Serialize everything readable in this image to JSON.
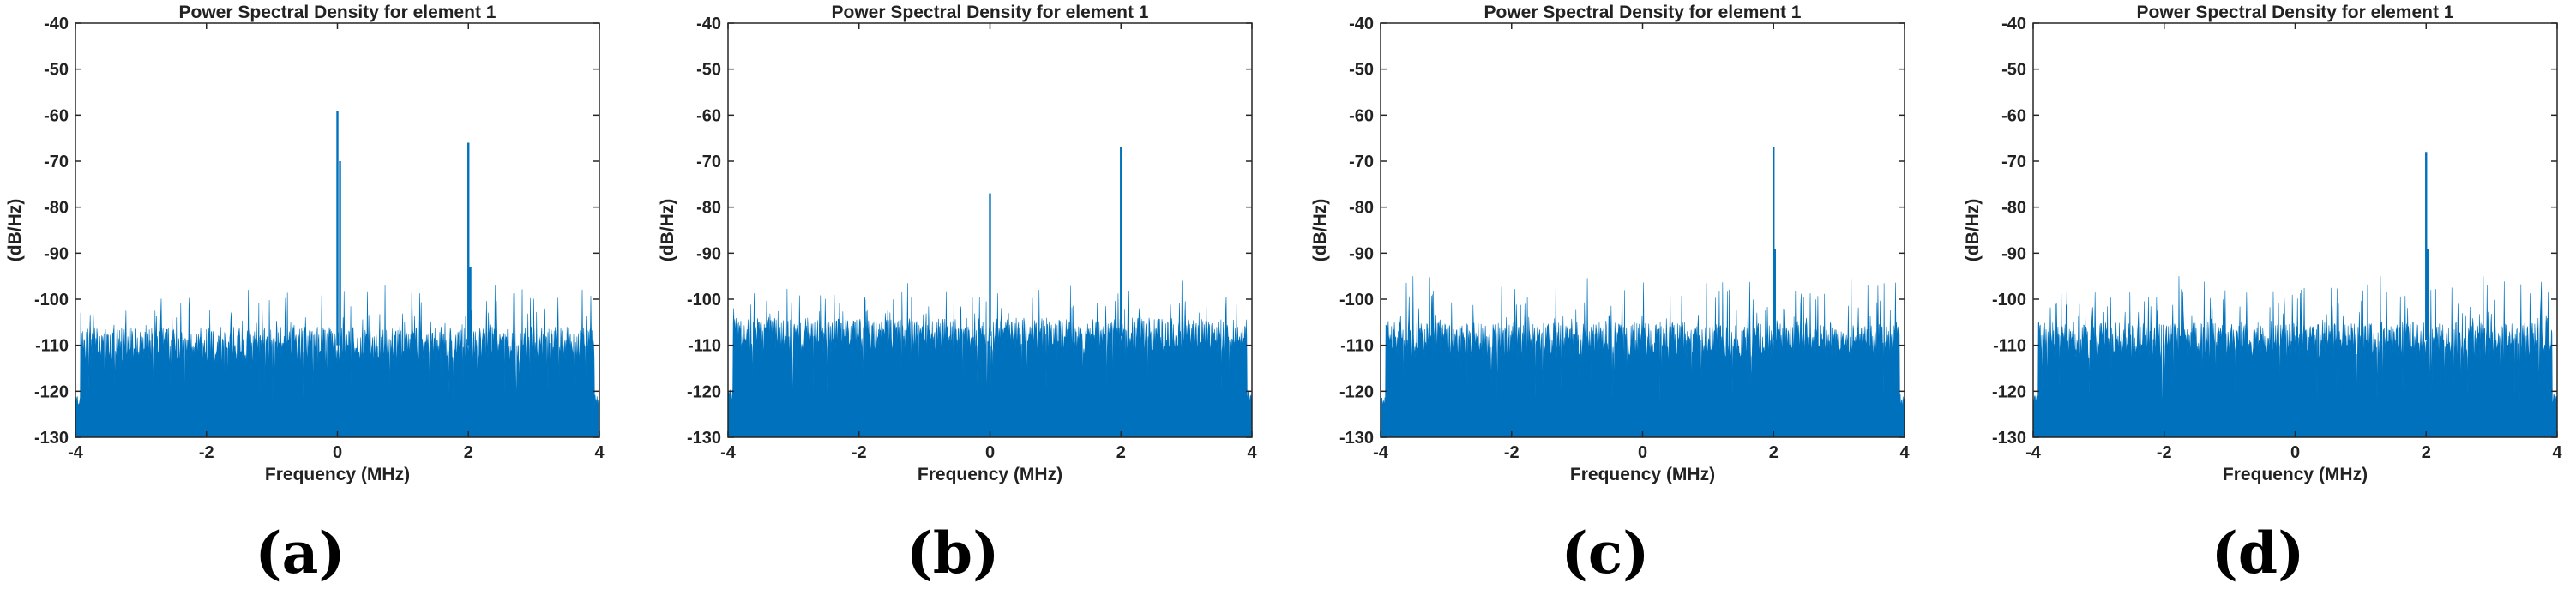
{
  "chart_data": [
    {
      "type": "area",
      "panel_label": "(a)",
      "title": "Power Spectral Density for element 1",
      "xlabel": "Frequency (MHz)",
      "ylabel": "(dB/Hz)",
      "xlim": [
        -4,
        4
      ],
      "ylim": [
        -130,
        -40
      ],
      "xticks": [
        -4,
        -2,
        0,
        2,
        4
      ],
      "yticks": [
        -130,
        -120,
        -110,
        -100,
        -90,
        -80,
        -70,
        -60,
        -50,
        -40
      ],
      "grid": false,
      "series_color": "#0072BD",
      "passband": [
        -3.92,
        3.92
      ],
      "noise_floor_db": -110,
      "noise_peak_db": -99,
      "edge_level_db": -122,
      "spurs": [
        {
          "freq": 0,
          "db": -59
        },
        {
          "freq": 2,
          "db": -66
        },
        {
          "freq": 0.04,
          "db": -70
        },
        {
          "freq": 2.03,
          "db": -93
        }
      ]
    },
    {
      "type": "area",
      "panel_label": "(b)",
      "title": "Power Spectral Density for element 1",
      "xlabel": "Frequency (MHz)",
      "ylabel": "(dB/Hz)",
      "xlim": [
        -4,
        4
      ],
      "ylim": [
        -130,
        -40
      ],
      "xticks": [
        -4,
        -2,
        0,
        2,
        4
      ],
      "yticks": [
        -130,
        -120,
        -110,
        -100,
        -90,
        -80,
        -70,
        -60,
        -50,
        -40
      ],
      "grid": false,
      "series_color": "#0072BD",
      "passband": [
        -3.92,
        3.92
      ],
      "noise_floor_db": -108,
      "noise_peak_db": -98,
      "edge_level_db": -121,
      "spurs": [
        {
          "freq": 0,
          "db": -77
        },
        {
          "freq": 2,
          "db": -67
        }
      ]
    },
    {
      "type": "area",
      "panel_label": "(c)",
      "title": "Power Spectral Density for element 1",
      "xlabel": "Frequency (MHz)",
      "ylabel": "(dB/Hz)",
      "xlim": [
        -4,
        4
      ],
      "ylim": [
        -130,
        -40
      ],
      "xticks": [
        -4,
        -2,
        0,
        2,
        4
      ],
      "yticks": [
        -130,
        -120,
        -110,
        -100,
        -90,
        -80,
        -70,
        -60,
        -50,
        -40
      ],
      "grid": false,
      "series_color": "#0072BD",
      "passband": [
        -3.92,
        3.92
      ],
      "noise_floor_db": -109,
      "noise_peak_db": -97,
      "edge_level_db": -122,
      "spurs": [
        {
          "freq": 2,
          "db": -67
        },
        {
          "freq": 2.02,
          "db": -89
        }
      ]
    },
    {
      "type": "area",
      "panel_label": "(d)",
      "title": "Power Spectral Density for element 1",
      "xlabel": "Frequency (MHz)",
      "ylabel": "(dB/Hz)",
      "xlim": [
        -4,
        4
      ],
      "ylim": [
        -130,
        -40
      ],
      "xticks": [
        -4,
        -2,
        0,
        2,
        4
      ],
      "yticks": [
        -130,
        -120,
        -110,
        -100,
        -90,
        -80,
        -70,
        -60,
        -50,
        -40
      ],
      "grid": false,
      "series_color": "#0072BD",
      "passband": [
        -3.92,
        3.92
      ],
      "noise_floor_db": -109,
      "noise_peak_db": -97,
      "edge_level_db": -122,
      "spurs": [
        {
          "freq": 2,
          "db": -68
        },
        {
          "freq": 2.02,
          "db": -89
        }
      ]
    }
  ]
}
